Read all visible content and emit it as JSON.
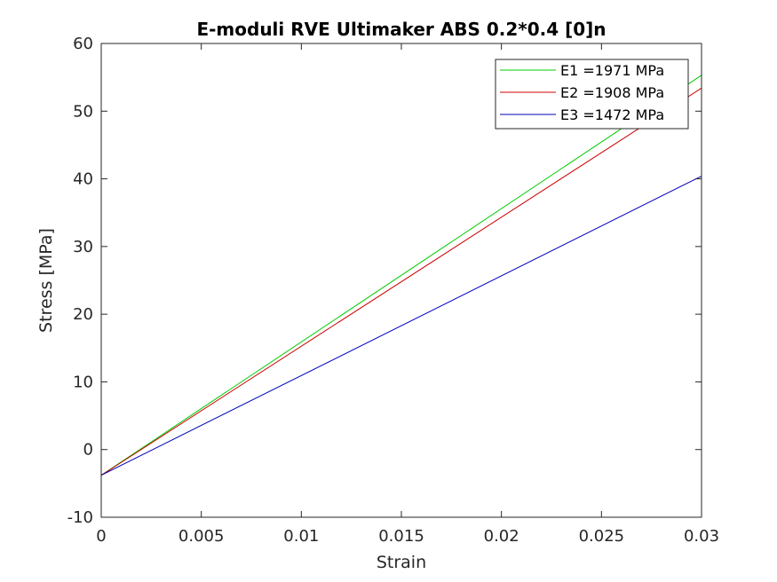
{
  "chart_data": {
    "type": "line",
    "title": "E-moduli RVE Ultimaker ABS 0.2*0.4 [0]n",
    "xlabel": "Strain",
    "ylabel": "Stress [MPa]",
    "xlim": [
      0,
      0.03
    ],
    "ylim": [
      -10,
      60
    ],
    "xticks": [
      0,
      0.005,
      0.01,
      0.015,
      0.02,
      0.025,
      0.03
    ],
    "xtick_labels": [
      "0",
      "0.005",
      "0.01",
      "0.015",
      "0.02",
      "0.025",
      "0.03"
    ],
    "yticks": [
      -10,
      0,
      10,
      20,
      30,
      40,
      50,
      60
    ],
    "ytick_labels": [
      "-10",
      "0",
      "10",
      "20",
      "30",
      "40",
      "50",
      "60"
    ],
    "grid": false,
    "legend_position": "top-right",
    "series": [
      {
        "name": "E1 =1971 MPa",
        "color": "#00cc00",
        "x": [
          0,
          0.03
        ],
        "y": [
          -3.8,
          55.3
        ]
      },
      {
        "name": "E2 =1908 MPa",
        "color": "#cc0000",
        "x": [
          0,
          0.03
        ],
        "y": [
          -3.8,
          53.4
        ]
      },
      {
        "name": "E3 =1472 MPa",
        "color": "#0000bb",
        "x": [
          0,
          0.03
        ],
        "y": [
          -3.8,
          40.4
        ]
      }
    ]
  }
}
